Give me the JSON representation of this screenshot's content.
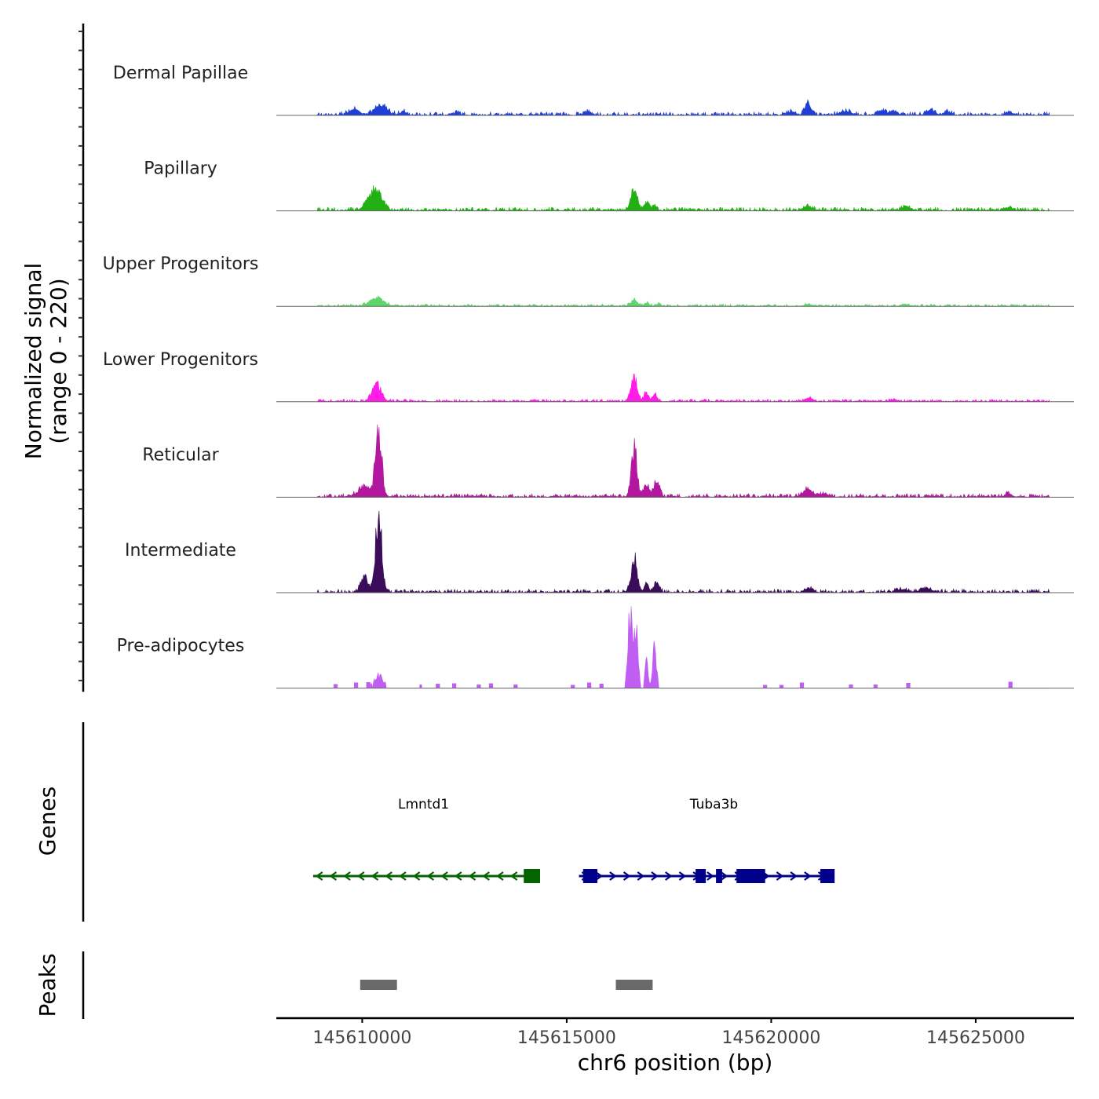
{
  "chart_data": {
    "type": "area",
    "title": "",
    "ylabel_lines": [
      "Normalized signal",
      "(range 0 - 220)"
    ],
    "ylim": [
      0,
      220
    ],
    "xlabel": "chr6 position (bp)",
    "xlim": [
      145607900,
      145627400
    ],
    "x_ticks": [
      145610000,
      145615000,
      145620000,
      145625000
    ],
    "x_tick_labels": [
      "145610000",
      "145615000",
      "145620000",
      "145625000"
    ],
    "signal_track_range": [
      145608900,
      145626800
    ],
    "tracks": [
      {
        "name": "Dermal Papillae",
        "color": "#1f3fd6",
        "peaks": [
          [
            145609800,
            15,
            120,
            0.4
          ],
          [
            145610450,
            22,
            160,
            0.8
          ],
          [
            145611000,
            8,
            70,
            0.4
          ],
          [
            145612300,
            7,
            60,
            0.4
          ],
          [
            145615500,
            7,
            90,
            0.5
          ],
          [
            145620900,
            32,
            70,
            0.5
          ],
          [
            145620500,
            8,
            100,
            0.4
          ],
          [
            145621800,
            9,
            150,
            0.6
          ],
          [
            145622700,
            10,
            100,
            0.5
          ],
          [
            145623000,
            9,
            90,
            0.5
          ],
          [
            145623900,
            13,
            100,
            0.5
          ],
          [
            145624300,
            8,
            80,
            0.5
          ],
          [
            145625800,
            6,
            60,
            0.4
          ]
        ],
        "noise": 4,
        "sparse": false,
        "seed": 3
      },
      {
        "name": "Papillary",
        "color": "#22b014",
        "peaks": [
          [
            145610350,
            50,
            140,
            0.85
          ],
          [
            145610100,
            15,
            90,
            0.6
          ],
          [
            145616650,
            55,
            80,
            0.8
          ],
          [
            145616950,
            18,
            60,
            0.6
          ],
          [
            145617150,
            12,
            50,
            0.5
          ],
          [
            145620900,
            9,
            120,
            0.6
          ],
          [
            145623300,
            10,
            110,
            0.5
          ],
          [
            145625800,
            8,
            100,
            0.5
          ]
        ],
        "noise": 4,
        "sparse": false,
        "seed": 7
      },
      {
        "name": "Upper Progenitors",
        "color": "#5fd66b",
        "peaks": [
          [
            145610350,
            18,
            180,
            0.7
          ],
          [
            145616650,
            15,
            80,
            0.6
          ],
          [
            145616950,
            8,
            60,
            0.5
          ],
          [
            145617250,
            6,
            50,
            0.5
          ],
          [
            145620900,
            5,
            80,
            0.5
          ],
          [
            145623300,
            5,
            80,
            0.5
          ]
        ],
        "noise": 2.5,
        "sparse": false,
        "seed": 11
      },
      {
        "name": "Lower Progenitors",
        "color": "#ff1ce8",
        "peaks": [
          [
            145610350,
            45,
            110,
            0.8
          ],
          [
            145616650,
            55,
            80,
            0.85
          ],
          [
            145616950,
            22,
            55,
            0.7
          ],
          [
            145617150,
            20,
            50,
            0.7
          ],
          [
            145620900,
            8,
            90,
            0.6
          ],
          [
            145623000,
            6,
            90,
            0.5
          ]
        ],
        "noise": 3,
        "sparse": false,
        "seed": 13
      },
      {
        "name": "Reticular",
        "color": "#b3169f",
        "peaks": [
          [
            145610400,
            175,
            75,
            0.95
          ],
          [
            145610050,
            25,
            150,
            0.7
          ],
          [
            145616650,
            120,
            70,
            0.9
          ],
          [
            145616950,
            30,
            60,
            0.7
          ],
          [
            145617200,
            40,
            70,
            0.8
          ],
          [
            145620900,
            18,
            120,
            0.6
          ],
          [
            145621300,
            8,
            90,
            0.5
          ],
          [
            145625800,
            8,
            80,
            0.5
          ]
        ],
        "noise": 4,
        "sparse": false,
        "seed": 17
      },
      {
        "name": "Intermediate",
        "color": "#3a0c5a",
        "peaks": [
          [
            145610400,
            200,
            75,
            0.95
          ],
          [
            145610050,
            35,
            90,
            0.8
          ],
          [
            145616650,
            85,
            70,
            0.9
          ],
          [
            145616950,
            22,
            55,
            0.7
          ],
          [
            145617200,
            25,
            60,
            0.7
          ],
          [
            145620900,
            10,
            90,
            0.6
          ],
          [
            145623200,
            8,
            120,
            0.5
          ],
          [
            145623800,
            9,
            150,
            0.5
          ]
        ],
        "noise": 4,
        "sparse": false,
        "seed": 23
      },
      {
        "name": "Pre-adipocytes",
        "color": "#be5ff2",
        "peaks": [
          [
            145616550,
            175,
            55,
            0.9
          ],
          [
            145616700,
            150,
            45,
            0.9
          ],
          [
            145616950,
            60,
            40,
            0.9
          ],
          [
            145617150,
            100,
            45,
            0.9
          ],
          [
            145610400,
            30,
            120,
            0.9
          ]
        ],
        "noise": 0,
        "sparse": true,
        "seed": 29,
        "blocks": [
          [
            145609300,
            145609400,
            10
          ],
          [
            145609800,
            145609900,
            14
          ],
          [
            145610100,
            145610200,
            15
          ],
          [
            145611400,
            145611450,
            9
          ],
          [
            145611800,
            145611900,
            11
          ],
          [
            145612200,
            145612300,
            12
          ],
          [
            145612800,
            145612900,
            9
          ],
          [
            145613100,
            145613200,
            12
          ],
          [
            145613700,
            145613800,
            9
          ],
          [
            145615100,
            145615200,
            8
          ],
          [
            145615500,
            145615600,
            14
          ],
          [
            145615800,
            145615900,
            11
          ],
          [
            145619800,
            145619900,
            8
          ],
          [
            145620200,
            145620300,
            8
          ],
          [
            145620700,
            145620800,
            14
          ],
          [
            145621900,
            145622000,
            9
          ],
          [
            145622500,
            145622600,
            9
          ],
          [
            145623300,
            145623400,
            13
          ],
          [
            145625800,
            145625900,
            16
          ]
        ]
      }
    ],
    "genes_label": "Genes",
    "genes": [
      {
        "name": "Lmntd1",
        "strand": "-",
        "color": "#046401",
        "start": 145608800,
        "end": 145614200,
        "label_x": 145611500,
        "exons": [
          [
            145613950,
            145614350
          ]
        ]
      },
      {
        "name": "Tuba3b",
        "strand": "+",
        "color": "#00008b",
        "start": 145615300,
        "end": 145621500,
        "label_x": 145618600,
        "exons": [
          [
            145615400,
            145615750
          ],
          [
            145618150,
            145618400
          ],
          [
            145618650,
            145618800
          ],
          [
            145619150,
            145619850
          ],
          [
            145621200,
            145621550
          ]
        ]
      }
    ],
    "peaks_label": "Peaks",
    "peak_color": "#696969",
    "peaks": [
      [
        145609950,
        145610850
      ],
      [
        145616200,
        145617100
      ]
    ]
  }
}
